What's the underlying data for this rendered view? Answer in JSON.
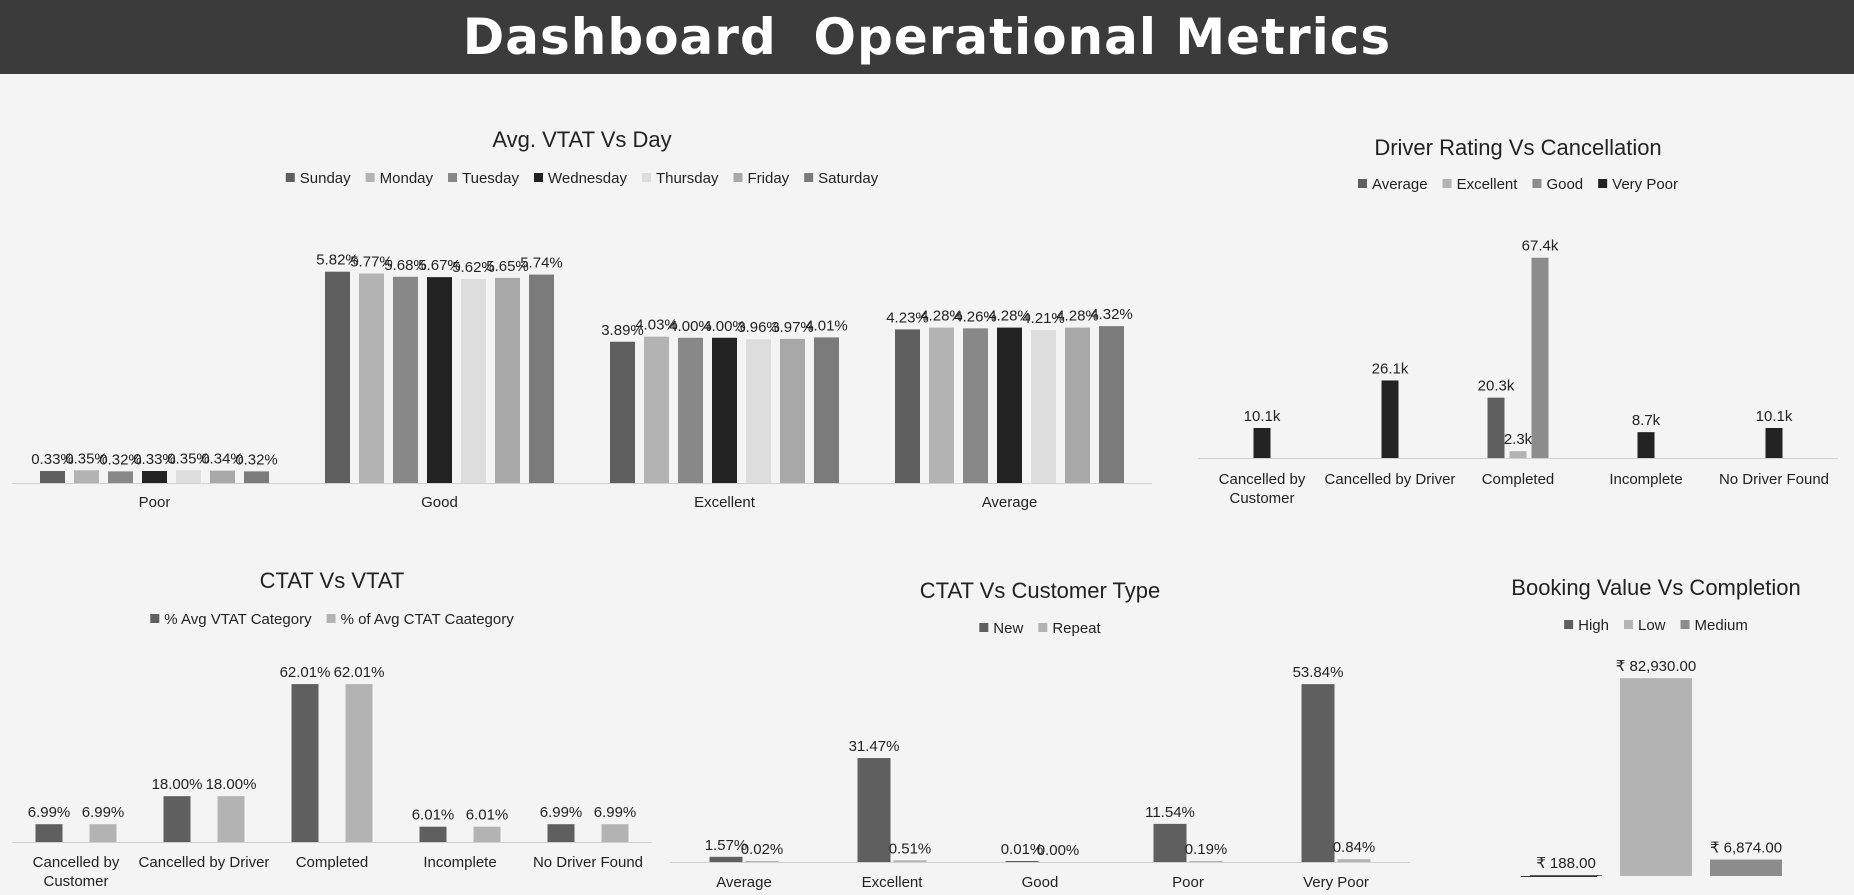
{
  "header": {
    "title": "Dashboard  Operational Metrics"
  },
  "chart_data": [
    {
      "id": "vtat-day",
      "type": "bar",
      "title": "Avg. VTAT Vs Day",
      "categories": [
        "Poor",
        "Good",
        "Excellent",
        "Average"
      ],
      "series": [
        {
          "name": "Sunday",
          "color": "#5f5f5f",
          "values": [
            0.33,
            5.82,
            3.89,
            4.23
          ],
          "labels": [
            "0.33%",
            "5.82%",
            "3.89%",
            "4.23%"
          ]
        },
        {
          "name": "Monday",
          "color": "#b3b3b3",
          "values": [
            0.35,
            5.77,
            4.03,
            4.28
          ],
          "labels": [
            "0.35%",
            "5.77%",
            "4.03%",
            "4.28%"
          ]
        },
        {
          "name": "Tuesday",
          "color": "#888888",
          "values": [
            0.32,
            5.68,
            4.0,
            4.26
          ],
          "labels": [
            "0.32%",
            "5.68%",
            "4.00%",
            "4.26%"
          ]
        },
        {
          "name": "Wednesday",
          "color": "#222222",
          "values": [
            0.33,
            5.67,
            4.0,
            4.28
          ],
          "labels": [
            "0.33%",
            "5.67%",
            "4.00%",
            "4.28%"
          ]
        },
        {
          "name": "Thursday",
          "color": "#dddddd",
          "values": [
            0.35,
            5.62,
            3.96,
            4.21
          ],
          "labels": [
            "0.35%",
            "5.62%",
            "3.96%",
            "4.21%"
          ]
        },
        {
          "name": "Friday",
          "color": "#a8a8a8",
          "values": [
            0.34,
            5.65,
            3.97,
            4.28
          ],
          "labels": [
            "0.34%",
            "5.65%",
            "3.97%",
            "4.28%"
          ]
        },
        {
          "name": "Saturday",
          "color": "#7b7b7b",
          "values": [
            0.32,
            5.74,
            4.01,
            4.32
          ],
          "labels": [
            "0.32%",
            "5.74%",
            "4.01%",
            "4.32%"
          ]
        }
      ],
      "ylim": [
        0,
        6.5
      ],
      "legend_position": "top"
    },
    {
      "id": "driver-rating",
      "type": "bar",
      "title": "Driver Rating Vs Cancellation",
      "categories": [
        "Cancelled by Customer",
        "Cancelled by Driver",
        "Completed",
        "Incomplete",
        "No Driver Found"
      ],
      "series": [
        {
          "name": "Average",
          "color": "#5f5f5f",
          "values": [
            null,
            null,
            20.3,
            null,
            null
          ],
          "labels": [
            "",
            "",
            "20.3k",
            "",
            ""
          ]
        },
        {
          "name": "Excellent",
          "color": "#b3b3b3",
          "values": [
            null,
            null,
            2.3,
            null,
            null
          ],
          "labels": [
            "",
            "",
            "2.3k",
            "",
            ""
          ]
        },
        {
          "name": "Good",
          "color": "#8c8c8c",
          "values": [
            null,
            null,
            67.4,
            null,
            null
          ],
          "labels": [
            "",
            "",
            "67.4k",
            "",
            ""
          ]
        },
        {
          "name": "Very Poor",
          "color": "#222222",
          "values": [
            10.1,
            26.1,
            null,
            8.7,
            10.1
          ],
          "labels": [
            "10.1k",
            "26.1k",
            "",
            "8.7k",
            "10.1k"
          ]
        }
      ],
      "ylim": [
        0,
        70
      ],
      "legend_position": "top"
    },
    {
      "id": "ctat-vtat",
      "type": "bar",
      "title": "CTAT Vs VTAT",
      "categories": [
        "Cancelled by Customer",
        "Cancelled by Driver",
        "Completed",
        "Incomplete",
        "No Driver Found"
      ],
      "series": [
        {
          "name": "% Avg VTAT Category",
          "color": "#5f5f5f",
          "values": [
            6.99,
            18.0,
            62.01,
            6.01,
            6.99
          ],
          "labels": [
            "6.99%",
            "18.00%",
            "62.01%",
            "6.01%",
            "6.99%"
          ]
        },
        {
          "name": "% of Avg CTAT Caategory",
          "color": "#b3b3b3",
          "values": [
            6.99,
            18.0,
            62.01,
            6.01,
            6.99
          ],
          "labels": [
            "6.99%",
            "18.00%",
            "62.01%",
            "6.01%",
            "6.99%"
          ]
        }
      ],
      "ylim": [
        0,
        64
      ],
      "legend_position": "top"
    },
    {
      "id": "ctat-customer",
      "type": "bar",
      "title": "CTAT Vs Customer Type",
      "categories": [
        "Average",
        "Excellent",
        "Good",
        "Poor",
        "Very Poor"
      ],
      "series": [
        {
          "name": "New",
          "color": "#5f5f5f",
          "values": [
            1.57,
            31.47,
            0.01,
            11.54,
            53.84
          ],
          "labels": [
            "1.57%",
            "31.47%",
            "0.01%",
            "11.54%",
            "53.84%"
          ]
        },
        {
          "name": "Repeat",
          "color": "#b3b3b3",
          "values": [
            0.02,
            0.51,
            0.0,
            0.19,
            0.84
          ],
          "labels": [
            "0.02%",
            "0.51%",
            "0.00%",
            "0.19%",
            "0.84%"
          ]
        }
      ],
      "ylim": [
        0,
        56
      ],
      "legend_position": "top"
    },
    {
      "id": "booking-value",
      "type": "bar",
      "title": "Booking Value Vs Completion",
      "categories": [
        ""
      ],
      "series": [
        {
          "name": "High",
          "color": "#5f5f5f",
          "values": [
            188
          ],
          "labels": [
            "₹ 188.00"
          ]
        },
        {
          "name": "Low",
          "color": "#b3b3b3",
          "values": [
            82930
          ],
          "labels": [
            "₹ 82,930.00"
          ]
        },
        {
          "name": "Medium",
          "color": "#8c8c8c",
          "values": [
            6874
          ],
          "labels": [
            "₹ 6,874.00"
          ]
        }
      ],
      "ylim": [
        0,
        83000
      ],
      "legend_position": "top"
    }
  ]
}
